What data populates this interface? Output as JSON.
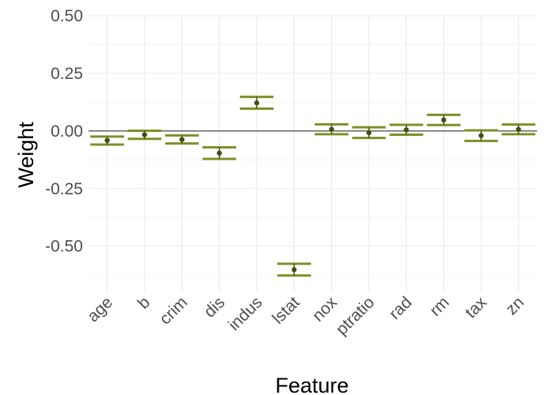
{
  "chart_data": {
    "type": "errorbar",
    "xlabel": "Feature",
    "ylabel": "Weight",
    "ylim": [
      -0.7,
      0.5
    ],
    "y_ticks": [
      0.5,
      0.25,
      0.0,
      -0.25,
      -0.5
    ],
    "y_tick_labels": [
      "0.50",
      "0.25",
      "0.00",
      "-0.25",
      "-0.50"
    ],
    "zero_line": 0,
    "grid": true,
    "categories": [
      "age",
      "b",
      "crim",
      "dis",
      "indus",
      "lstat",
      "nox",
      "ptratio",
      "rad",
      "rm",
      "tax",
      "zn"
    ],
    "points": [
      {
        "feature": "age",
        "value": -0.041,
        "lower": -0.059,
        "upper": -0.024
      },
      {
        "feature": "b",
        "value": -0.016,
        "lower": -0.034,
        "upper": 0.001
      },
      {
        "feature": "crim",
        "value": -0.037,
        "lower": -0.054,
        "upper": -0.019
      },
      {
        "feature": "dis",
        "value": -0.096,
        "lower": -0.121,
        "upper": -0.071
      },
      {
        "feature": "indus",
        "value": 0.122,
        "lower": 0.097,
        "upper": 0.148
      },
      {
        "feature": "lstat",
        "value": -0.602,
        "lower": -0.627,
        "upper": -0.576
      },
      {
        "feature": "nox",
        "value": 0.007,
        "lower": -0.014,
        "upper": 0.029
      },
      {
        "feature": "ptratio",
        "value": -0.007,
        "lower": -0.03,
        "upper": 0.016
      },
      {
        "feature": "rad",
        "value": 0.005,
        "lower": -0.016,
        "upper": 0.027
      },
      {
        "feature": "rm",
        "value": 0.048,
        "lower": 0.026,
        "upper": 0.07
      },
      {
        "feature": "tax",
        "value": -0.02,
        "lower": -0.043,
        "upper": 0.003
      },
      {
        "feature": "zn",
        "value": 0.007,
        "lower": -0.014,
        "upper": 0.028
      }
    ],
    "colors": {
      "errorbar": "#7c9127",
      "point": "#3d5012",
      "grid": "#ebebeb",
      "zero_line": "#333333"
    }
  }
}
